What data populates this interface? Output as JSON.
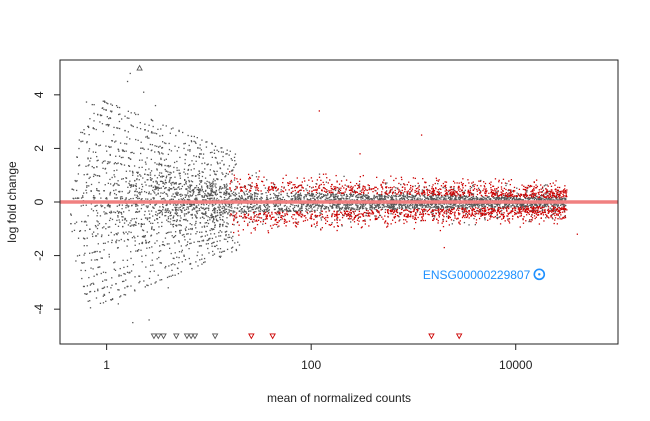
{
  "chart_data": {
    "type": "scatter",
    "title": "",
    "xlabel": "mean of normalized counts",
    "ylabel": "log fold change",
    "x_scale": "log10",
    "xlim": [
      0.35,
      100000
    ],
    "ylim": [
      -5.3,
      5.3
    ],
    "x_ticks": [
      {
        "value": 1,
        "label": "1"
      },
      {
        "value": 100,
        "label": "100"
      },
      {
        "value": 10000,
        "label": "10000"
      }
    ],
    "y_ticks": [
      {
        "value": -4,
        "label": "-4"
      },
      {
        "value": -2,
        "label": "-2"
      },
      {
        "value": 0,
        "label": "0"
      },
      {
        "value": 2,
        "label": "2"
      },
      {
        "value": 4,
        "label": "4"
      }
    ],
    "grid": false,
    "legend": "none",
    "reference_line": {
      "y": 0,
      "color": "#f08080"
    },
    "colors": {
      "not_significant": "#555555",
      "significant": "#cc0000",
      "highlight": "#1e90ff"
    },
    "series": [
      {
        "color": "#555555",
        "points": [
          {
            "x": 0.5,
            "y": -2.2
          },
          {
            "x": 0.6,
            "y": 2.7
          },
          {
            "x": 0.8,
            "y": 0.5
          },
          {
            "x": 1.0,
            "y": 3.7
          },
          {
            "x": 1.0,
            "y": 1.9
          },
          {
            "x": 1.1,
            "y": -3.2
          },
          {
            "x": 1.3,
            "y": -3.8
          },
          {
            "x": 1.4,
            "y": 3.1
          },
          {
            "x": 1.6,
            "y": 4.5
          },
          {
            "x": 1.7,
            "y": 4.8
          },
          {
            "x": 1.8,
            "y": -4.5
          },
          {
            "x": 2.3,
            "y": 4.1
          },
          {
            "x": 2.6,
            "y": -4.4
          },
          {
            "x": 3.0,
            "y": 3.6
          },
          {
            "x": 4.0,
            "y": -3.2
          },
          {
            "x": 8.0,
            "y": 1.7
          },
          {
            "x": 10.0,
            "y": -1.9
          }
        ],
        "generated_count": 2600
      },
      {
        "color": "#cc0000",
        "points": [
          {
            "x": 120,
            "y": 3.4
          },
          {
            "x": 1200,
            "y": 2.5
          },
          {
            "x": 300,
            "y": 1.8
          },
          {
            "x": 2000,
            "y": -1.7
          },
          {
            "x": 15000,
            "y": 0.5
          },
          {
            "x": 40000,
            "y": -1.2
          }
        ],
        "generated_count": 2600
      }
    ],
    "clipped_markers": [
      {
        "x": 2.1,
        "y": 5.0,
        "color": "#555555",
        "direction": "up"
      },
      {
        "x": 2.9,
        "y": -5.0,
        "color": "#555555",
        "direction": "down"
      },
      {
        "x": 3.2,
        "y": -5.0,
        "color": "#555555",
        "direction": "down"
      },
      {
        "x": 3.6,
        "y": -5.0,
        "color": "#555555",
        "direction": "down"
      },
      {
        "x": 4.8,
        "y": -5.0,
        "color": "#555555",
        "direction": "down"
      },
      {
        "x": 6.1,
        "y": -5.0,
        "color": "#555555",
        "direction": "down"
      },
      {
        "x": 6.7,
        "y": -5.0,
        "color": "#555555",
        "direction": "down"
      },
      {
        "x": 7.3,
        "y": -5.0,
        "color": "#555555",
        "direction": "down"
      },
      {
        "x": 11.5,
        "y": -5.0,
        "color": "#555555",
        "direction": "down"
      },
      {
        "x": 26,
        "y": -5.0,
        "color": "#cc0000",
        "direction": "down"
      },
      {
        "x": 42,
        "y": -5.0,
        "color": "#cc0000",
        "direction": "down"
      },
      {
        "x": 1500,
        "y": -5.0,
        "color": "#cc0000",
        "direction": "down"
      },
      {
        "x": 2800,
        "y": -5.0,
        "color": "#cc0000",
        "direction": "down"
      }
    ],
    "highlight": {
      "label": "ENSG00000229807",
      "x": 17000,
      "y": -2.7,
      "color": "#1e90ff"
    }
  }
}
